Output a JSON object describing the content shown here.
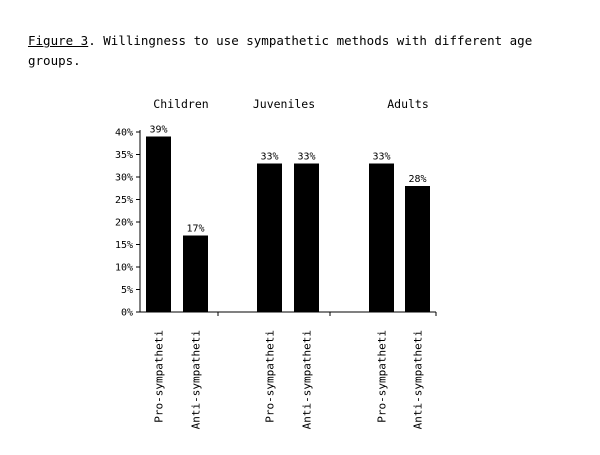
{
  "caption": {
    "figure_label": "Figure 3",
    "text": ". Willingness to use sympathetic methods with different age groups."
  },
  "chart_data": {
    "type": "bar",
    "groups": [
      "Children",
      "Juveniles",
      "Adults"
    ],
    "categories": [
      "Pro-sympatheti",
      "Anti-sympatheti"
    ],
    "series": [
      {
        "group": "Children",
        "values": [
          39,
          17
        ],
        "labels": [
          "39%",
          "17%"
        ]
      },
      {
        "group": "Juveniles",
        "values": [
          33,
          33
        ],
        "labels": [
          "33%",
          "33%"
        ]
      },
      {
        "group": "Adults",
        "values": [
          33,
          28
        ],
        "labels": [
          "33%",
          "28%"
        ]
      }
    ],
    "ylim": [
      0,
      40
    ],
    "yticks": [
      0,
      5,
      10,
      15,
      20,
      25,
      30,
      35,
      40
    ],
    "ytick_labels": [
      "0%",
      "5%",
      "10%",
      "15%",
      "20%",
      "25%",
      "30%",
      "35%",
      "40%"
    ],
    "bar_color": "#000000",
    "grid": false
  }
}
